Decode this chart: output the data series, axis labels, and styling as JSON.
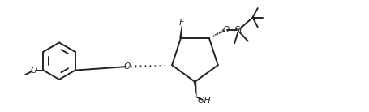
{
  "bg_color": "#ffffff",
  "line_color": "#222222",
  "lw": 1.4,
  "fig_w": 4.56,
  "fig_h": 1.38,
  "dpi": 100,
  "xlim": [
    0,
    110
  ],
  "ylim": [
    2,
    35
  ]
}
